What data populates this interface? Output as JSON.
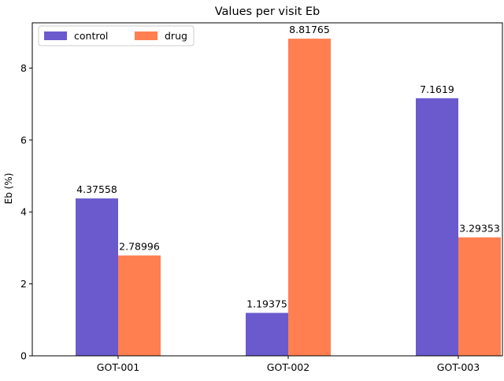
{
  "chart_data": {
    "type": "bar",
    "title": "Values per visit Eb",
    "xlabel": "",
    "ylabel": "Eb (%)",
    "categories": [
      "GOT-001",
      "GOT-002",
      "GOT-003"
    ],
    "series": [
      {
        "name": "control",
        "color": "#6a5acd",
        "values": [
          4.37558,
          1.19375,
          7.1619
        ],
        "labels": [
          "4.37558",
          "1.19375",
          "7.1619"
        ]
      },
      {
        "name": "drug",
        "color": "#ff7f50",
        "values": [
          2.78996,
          8.81765,
          3.29353
        ],
        "labels": [
          "2.78996",
          "8.81765",
          "3.29353"
        ]
      }
    ],
    "ylim": [
      0,
      9.258
    ],
    "yticks": [
      0,
      2,
      4,
      6,
      8
    ],
    "legend": "top-left",
    "grid": false
  }
}
